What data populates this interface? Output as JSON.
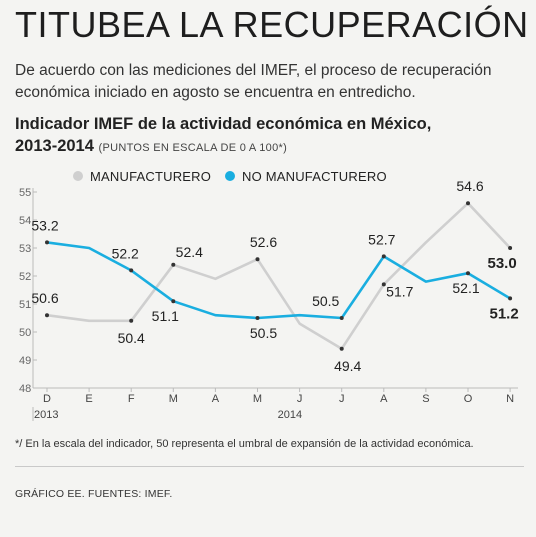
{
  "headline": "TITUBEA LA RECUPERACIÓN",
  "deck": "De acuerdo con las mediciones del IMEF, el proceso de recuperación económica iniciado en agosto se encuentra en entredicho.",
  "chart_title": "Indicador IMEF de la actividad económica en México,",
  "chart_title_years": "2013-2014",
  "chart_title_note": "(PUNTOS EN ESCALA DE 0 A 100*)",
  "footnote": "*/ En la escala del indicador, 50 representa el umbral de expansión de la actividad económica.",
  "source": "GRÁFICO EE. FUENTES: IMEF.",
  "chart_data": {
    "type": "line",
    "categories": [
      "D",
      "E",
      "F",
      "M",
      "A",
      "M",
      "J",
      "J",
      "A",
      "S",
      "O",
      "N"
    ],
    "year_labels": [
      {
        "index": 0,
        "label": "2013"
      },
      {
        "index": 6,
        "label": "2014"
      }
    ],
    "ylim": [
      48,
      55
    ],
    "yticks": [
      48,
      49,
      50,
      51,
      52,
      53,
      54,
      55
    ],
    "legend_position": "top",
    "series": [
      {
        "name": "MANUFACTURERO",
        "color": "#cfcfcf",
        "values": [
          50.6,
          50.4,
          50.4,
          52.4,
          51.9,
          52.6,
          50.3,
          49.4,
          51.7,
          53.2,
          54.6,
          53.0
        ],
        "labeled_points": [
          {
            "index": 0,
            "label": "50.6"
          },
          {
            "index": 2,
            "label": "50.4"
          },
          {
            "index": 3,
            "label": "52.4"
          },
          {
            "index": 5,
            "label": "52.6"
          },
          {
            "index": 7,
            "label": "49.4"
          },
          {
            "index": 8,
            "label": "51.7"
          },
          {
            "index": 10,
            "label": "54.6"
          },
          {
            "index": 11,
            "label": "53.0"
          }
        ]
      },
      {
        "name": "NO MANUFACTURERO",
        "color": "#1aaee0",
        "values": [
          53.2,
          53.0,
          52.2,
          51.1,
          50.6,
          50.5,
          50.6,
          50.5,
          52.7,
          51.8,
          52.1,
          51.2
        ],
        "labeled_points": [
          {
            "index": 0,
            "label": "53.2"
          },
          {
            "index": 2,
            "label": "52.2"
          },
          {
            "index": 3,
            "label": "51.1"
          },
          {
            "index": 5,
            "label": "50.5"
          },
          {
            "index": 7,
            "label": "50.5"
          },
          {
            "index": 8,
            "label": "52.7"
          },
          {
            "index": 10,
            "label": "52.1"
          },
          {
            "index": 11,
            "label": "51.2"
          }
        ]
      }
    ]
  }
}
